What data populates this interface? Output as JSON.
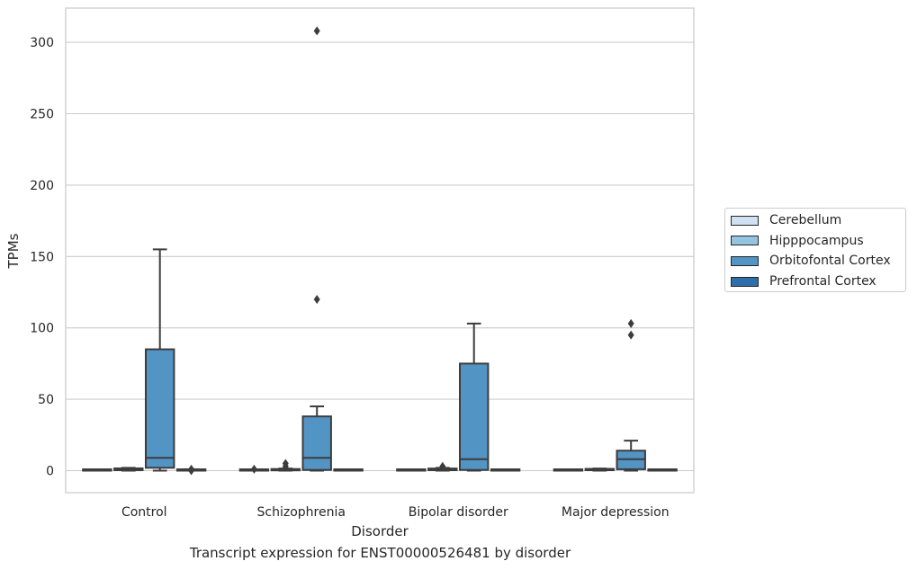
{
  "chart_data": {
    "type": "box",
    "caption": "Transcript expression for ENST00000526481 by disorder",
    "xlabel": "Disorder",
    "ylabel": "TPMs",
    "ylim": [
      -15,
      324
    ],
    "yticks": [
      0,
      50,
      100,
      150,
      200,
      250,
      300
    ],
    "grid": "horizontal",
    "legend_position": "right",
    "categories": [
      "Control",
      "Schizophrenia",
      "Bipolar disorder",
      "Major depression"
    ],
    "series": [
      {
        "name": "Cerebellum",
        "color": "#d0e1f2",
        "boxes": [
          {
            "whisker_low": 0,
            "q1": 0,
            "median": 0,
            "q3": 0.3,
            "whisker_high": 0.5,
            "outliers": []
          },
          {
            "whisker_low": 0,
            "q1": 0,
            "median": 0,
            "q3": 0.3,
            "whisker_high": 0.5,
            "outliers": [
              1
            ]
          },
          {
            "whisker_low": 0,
            "q1": 0,
            "median": 0,
            "q3": 0.3,
            "whisker_high": 0.5,
            "outliers": []
          },
          {
            "whisker_low": 0,
            "q1": 0,
            "median": 0,
            "q3": 0.3,
            "whisker_high": 0.5,
            "outliers": []
          }
        ]
      },
      {
        "name": "Hipppocampus",
        "color": "#94c4df",
        "boxes": [
          {
            "whisker_low": 0,
            "q1": 0.3,
            "median": 1,
            "q3": 1.6,
            "whisker_high": 2,
            "outliers": []
          },
          {
            "whisker_low": 0,
            "q1": 0.2,
            "median": 0.6,
            "q3": 1,
            "whisker_high": 1.5,
            "outliers": [
              3,
              5
            ]
          },
          {
            "whisker_low": 0,
            "q1": 0.3,
            "median": 0.8,
            "q3": 1.5,
            "whisker_high": 2,
            "outliers": [
              3
            ]
          },
          {
            "whisker_low": 0,
            "q1": 0.3,
            "median": 0.8,
            "q3": 1.2,
            "whisker_high": 1.5,
            "outliers": []
          }
        ]
      },
      {
        "name": "Orbitofontal Cortex",
        "color": "#5294c4",
        "boxes": [
          {
            "whisker_low": 0,
            "q1": 2,
            "median": 9,
            "q3": 85,
            "whisker_high": 155,
            "outliers": []
          },
          {
            "whisker_low": 0,
            "q1": 0.5,
            "median": 9,
            "q3": 38,
            "whisker_high": 45,
            "outliers": [
              120,
              308
            ]
          },
          {
            "whisker_low": 0,
            "q1": 0.5,
            "median": 8,
            "q3": 75,
            "whisker_high": 103,
            "outliers": []
          },
          {
            "whisker_low": 0,
            "q1": 1,
            "median": 8,
            "q3": 14,
            "whisker_high": 21,
            "outliers": [
              95,
              103
            ]
          }
        ]
      },
      {
        "name": "Prefrontal Cortex",
        "color": "#2e6eaa",
        "boxes": [
          {
            "whisker_low": 0,
            "q1": 0,
            "median": 0.3,
            "q3": 0.8,
            "whisker_high": 1,
            "outliers": [
              0,
              1
            ]
          },
          {
            "whisker_low": 0,
            "q1": 0,
            "median": 0.2,
            "q3": 0.5,
            "whisker_high": 0.8,
            "outliers": []
          },
          {
            "whisker_low": 0,
            "q1": 0,
            "median": 0.2,
            "q3": 0.5,
            "whisker_high": 0.8,
            "outliers": []
          },
          {
            "whisker_low": 0,
            "q1": 0,
            "median": 0.2,
            "q3": 0.5,
            "whisker_high": 0.8,
            "outliers": []
          }
        ]
      }
    ]
  }
}
